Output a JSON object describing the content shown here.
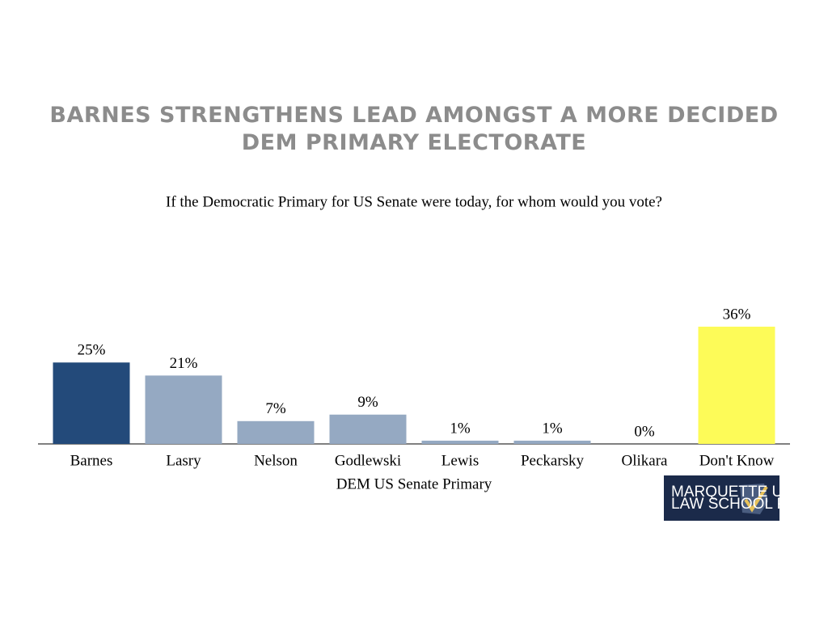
{
  "chart_data": {
    "type": "bar",
    "title": "BARNES STRENGTHENS LEAD AMONGST A MORE DECIDED DEM PRIMARY ELECTORATE",
    "subtitle": "If the Democratic Primary for US Senate were today, for whom would you vote?",
    "x_label": "DEM US Senate Primary",
    "categories": [
      "Barnes",
      "Lasry",
      "Nelson",
      "Godlewski",
      "Lewis",
      "Peckarsky",
      "Olikara",
      "Don't Know"
    ],
    "values": [
      25,
      21,
      7,
      9,
      1,
      1,
      0,
      36
    ],
    "value_labels": [
      "25%",
      "21%",
      "7%",
      "9%",
      "1%",
      "1%",
      "0%",
      "36%"
    ],
    "colors": [
      "#234a7a",
      "#95a9c2",
      "#95a9c2",
      "#95a9c2",
      "#95a9c2",
      "#95a9c2",
      "#95a9c2",
      "#fdfb58"
    ]
  },
  "logo": {
    "line1": "MARQUETTE UNIVERSITY",
    "line2": "LAW SCHOOL POLL"
  }
}
